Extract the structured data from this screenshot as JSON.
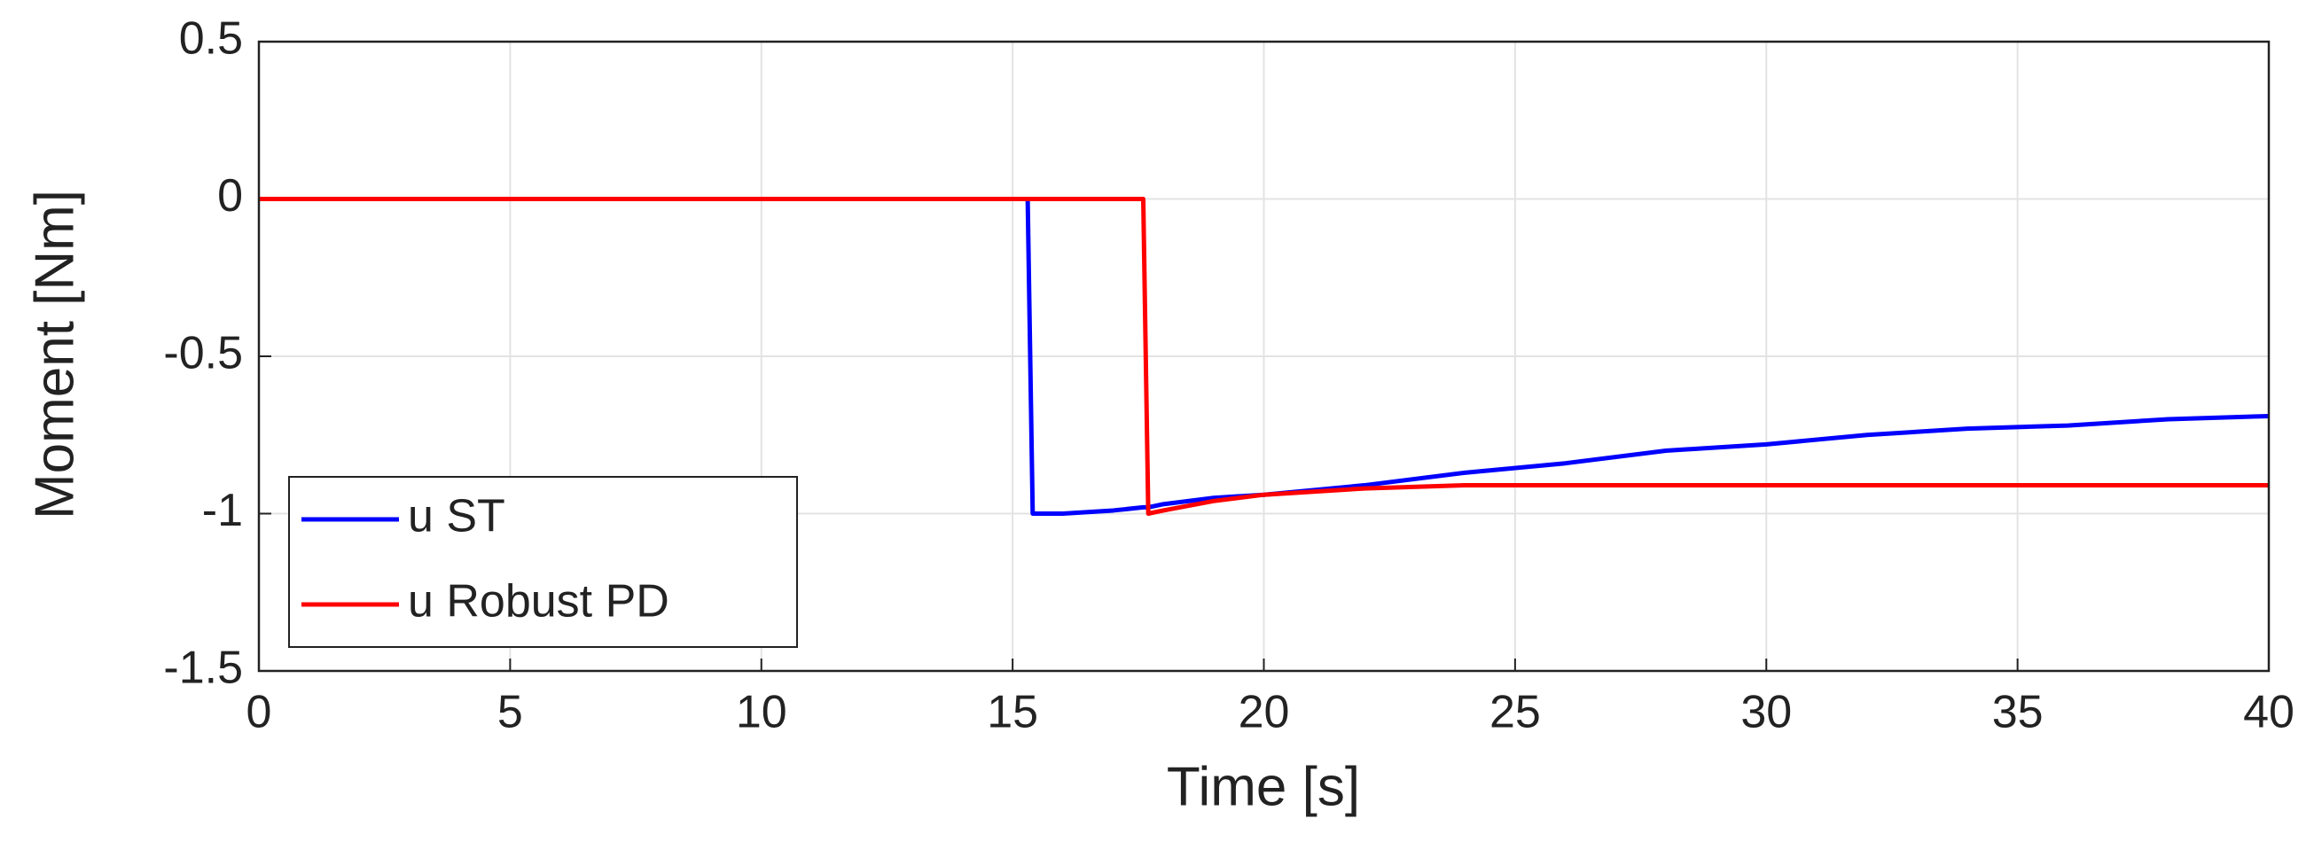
{
  "chart_data": {
    "type": "line",
    "xlabel": "Time [s]",
    "ylabel": "Moment [Nm]",
    "x": [
      0,
      15.3,
      15.4,
      16,
      17,
      17.6,
      17.7,
      18,
      19,
      20,
      22,
      24,
      26,
      28,
      30,
      32,
      34,
      36,
      38,
      40
    ],
    "series": [
      {
        "name": "u ST",
        "color": "#0000ff",
        "values": [
          0,
          0,
          -1,
          -1,
          -0.99,
          -0.98,
          -0.98,
          -0.97,
          -0.95,
          -0.94,
          -0.91,
          -0.87,
          -0.84,
          -0.8,
          -0.78,
          -0.75,
          -0.73,
          -0.72,
          -0.7,
          -0.69
        ]
      },
      {
        "name": "u Robust PD",
        "color": "#ff0000",
        "values": [
          0,
          0,
          0,
          0,
          0,
          0,
          -1,
          -0.99,
          -0.96,
          -0.94,
          -0.92,
          -0.91,
          -0.91,
          -0.91,
          -0.91,
          -0.91,
          -0.91,
          -0.91,
          -0.91,
          -0.91
        ]
      }
    ],
    "xlim": [
      0,
      40
    ],
    "xticks": [
      0,
      5,
      10,
      15,
      20,
      25,
      30,
      35,
      40
    ],
    "ylim": [
      -1.5,
      0.5
    ],
    "yticks": [
      0.5,
      0,
      -0.5,
      -1,
      -1.5
    ],
    "grid": true,
    "legend": "lower left"
  }
}
